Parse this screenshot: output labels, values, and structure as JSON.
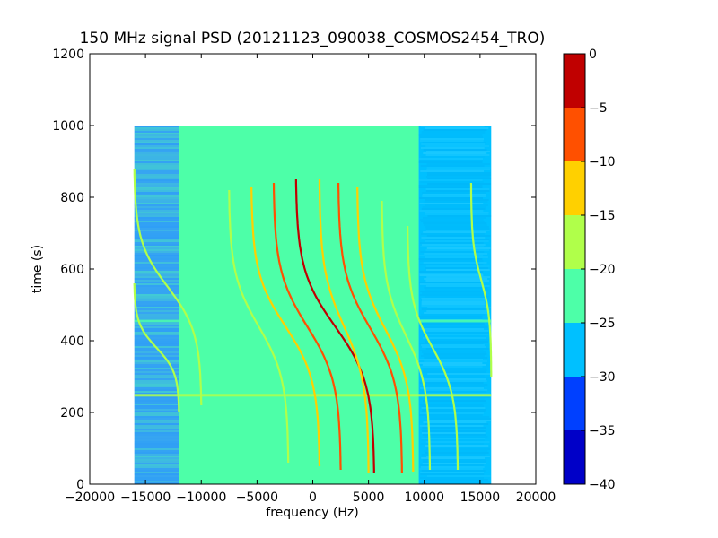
{
  "chart_data": {
    "type": "heatmap",
    "title": "150 MHz signal PSD (20121123_090038_COSMOS2454_TRO)",
    "xlabel": "frequency (Hz)",
    "ylabel": "time (s)",
    "xlim": [
      -20000,
      20000
    ],
    "ylim": [
      0,
      1200
    ],
    "xticks": [
      -20000,
      -15000,
      -10000,
      -5000,
      0,
      5000,
      10000,
      15000,
      20000
    ],
    "yticks": [
      0,
      200,
      400,
      600,
      800,
      1000,
      1200
    ],
    "data_extent": {
      "x": [
        -16000,
        16000
      ],
      "y": [
        0,
        1000
      ]
    },
    "colorbar": {
      "levels": [
        -40,
        -35,
        -30,
        -25,
        -20,
        -15,
        -10,
        -5,
        0
      ],
      "tick_labels": [
        "0",
        "−5",
        "−10",
        "−15",
        "−20",
        "−25",
        "−30",
        "−35",
        "−40"
      ],
      "colors": [
        "#0000c8",
        "#0040ff",
        "#00c0ff",
        "#4dffa8",
        "#b0ff4a",
        "#ffd000",
        "#ff5000",
        "#c00000"
      ]
    },
    "background_regions": [
      {
        "x": [
          -16000,
          -12000
        ],
        "level": -28,
        "color": "#3aa8f0"
      },
      {
        "x": [
          -12000,
          9500
        ],
        "level": -22,
        "color": "#4dffa8"
      },
      {
        "x": [
          9500,
          16000
        ],
        "level": -28,
        "color": "#00c0ff"
      }
    ],
    "horizontal_bands": [
      {
        "y": 248,
        "color": "#b0ff4a"
      },
      {
        "y": 455,
        "color": "#4dffa8"
      }
    ],
    "traces": [
      {
        "x_end": -16000,
        "x_low": -10000,
        "t_low": 220,
        "t_high": 880,
        "color": "#b0ff4a"
      },
      {
        "x_end": -16000,
        "x_low": -12000,
        "t_low": 200,
        "t_high": 560,
        "color": "#b0ff4a"
      },
      {
        "x_end": -7500,
        "x_low": -2200,
        "t_low": 60,
        "t_high": 820,
        "color": "#b0ff4a"
      },
      {
        "x_end": -5500,
        "x_low": 600,
        "t_low": 50,
        "t_high": 830,
        "color": "#ffd000"
      },
      {
        "x_end": -3500,
        "x_low": 2500,
        "t_low": 40,
        "t_high": 840,
        "color": "#ff5000"
      },
      {
        "x_end": -1500,
        "x_low": 5500,
        "t_low": 30,
        "t_high": 850,
        "color": "#c00000"
      },
      {
        "x_end": 600,
        "x_low": 5000,
        "t_low": 30,
        "t_high": 850,
        "color": "#ffd000"
      },
      {
        "x_end": 2300,
        "x_low": 8000,
        "t_low": 30,
        "t_high": 840,
        "color": "#ff5000"
      },
      {
        "x_end": 4000,
        "x_low": 9000,
        "t_low": 35,
        "t_high": 830,
        "color": "#ffd000"
      },
      {
        "x_end": 6200,
        "x_low": 10500,
        "t_low": 40,
        "t_high": 790,
        "color": "#b0ff4a"
      },
      {
        "x_end": 8500,
        "x_low": 13000,
        "t_low": 40,
        "t_high": 720,
        "color": "#b0ff4a"
      },
      {
        "x_end": 14200,
        "x_low": 16000,
        "t_low": 300,
        "t_high": 840,
        "color": "#b0ff4a"
      }
    ]
  }
}
